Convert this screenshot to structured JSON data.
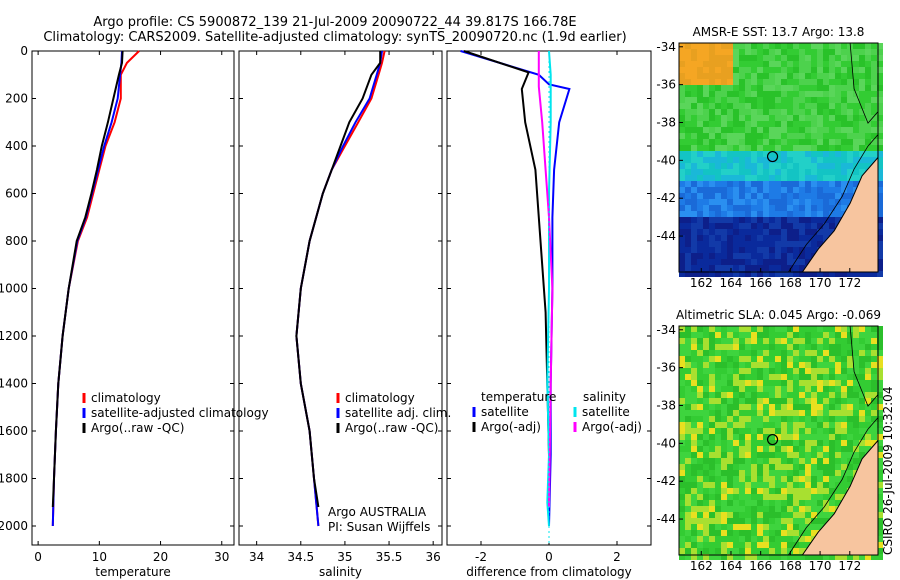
{
  "header": {
    "line1": "Argo profile: CS 5900872_139 21-Jul-2009 20090722_44 39.817S 166.78E",
    "line2": "Climatology: CARS2009. Satellite-adjusted climatology: synTS_20090720.nc (1.9d earlier)"
  },
  "side_stamp": "CSIRO 26-Jul-2009 10:32:04",
  "colors": {
    "climatology": "#ff0000",
    "satellite": "#0000ff",
    "argo": "#000000",
    "sat_sal": "#00e5ee",
    "argo_sal": "#ff00ff",
    "land": "#f7c59f"
  },
  "chart_data": [
    {
      "type": "line",
      "xlabel": "temperature",
      "ylabel": "",
      "xlim": [
        -1,
        32
      ],
      "ylim": [
        2080,
        0
      ],
      "xticks": [
        0,
        10,
        20,
        30
      ],
      "yticks": [
        0,
        200,
        400,
        600,
        800,
        1000,
        1200,
        1400,
        1600,
        1800,
        2000
      ],
      "series": [
        {
          "name": "climatology",
          "color": "#ff0000",
          "x": [
            16.5,
            14.5,
            13.5,
            13.5,
            12.5,
            11.0,
            10.0,
            9.0,
            8.0,
            6.5,
            5.0,
            4.0,
            3.3,
            2.9,
            2.6,
            2.4
          ],
          "y": [
            0,
            50,
            100,
            200,
            300,
            400,
            500,
            600,
            700,
            800,
            1000,
            1200,
            1400,
            1600,
            1800,
            2000
          ]
        },
        {
          "name": "satellite-adjusted climatology",
          "color": "#0000ff",
          "x": [
            13.7,
            13.6,
            13.4,
            13.0,
            12.0,
            10.8,
            9.8,
            8.8,
            7.8,
            6.4,
            5.0,
            4.0,
            3.3,
            2.9,
            2.6,
            2.4
          ],
          "y": [
            0,
            50,
            100,
            200,
            300,
            400,
            500,
            600,
            700,
            800,
            1000,
            1200,
            1400,
            1600,
            1800,
            2000
          ]
        },
        {
          "name": "Argo(..raw -QC)",
          "color": "#000000",
          "x": [
            13.8,
            13.7,
            13.2,
            12.3,
            11.4,
            10.4,
            9.6,
            8.7,
            7.7,
            6.3,
            5.0,
            4.0,
            3.3,
            2.9,
            2.6,
            2.4
          ],
          "y": [
            0,
            50,
            100,
            200,
            300,
            400,
            500,
            600,
            700,
            800,
            1000,
            1200,
            1400,
            1600,
            1800,
            1920
          ]
        }
      ],
      "legend": [
        "climatology",
        "satellite-adjusted climatology",
        "Argo(..raw -QC)"
      ]
    },
    {
      "type": "line",
      "xlabel": "salinity",
      "ylabel": "",
      "xlim": [
        33.8,
        36.1
      ],
      "ylim": [
        2080,
        0
      ],
      "xticks": [
        34,
        34.5,
        35,
        35.5,
        36
      ],
      "series": [
        {
          "name": "climatology",
          "color": "#ff0000",
          "x": [
            35.45,
            35.42,
            35.38,
            35.3,
            35.15,
            35.0,
            34.85,
            34.75,
            34.6,
            34.5,
            34.45,
            34.5,
            34.6,
            34.65,
            34.7
          ],
          "y": [
            0,
            50,
            100,
            200,
            300,
            400,
            500,
            600,
            800,
            1000,
            1200,
            1400,
            1600,
            1800,
            2000
          ]
        },
        {
          "name": "satellite adj. clim.",
          "color": "#0000ff",
          "x": [
            35.42,
            35.4,
            35.36,
            35.28,
            35.12,
            34.98,
            34.85,
            34.75,
            34.6,
            34.5,
            34.45,
            34.5,
            34.6,
            34.65,
            34.7
          ],
          "y": [
            0,
            50,
            100,
            200,
            300,
            400,
            500,
            600,
            800,
            1000,
            1200,
            1400,
            1600,
            1800,
            2000
          ]
        },
        {
          "name": "Argo(..raw -QC)",
          "color": "#000000",
          "x": [
            35.4,
            35.4,
            35.3,
            35.2,
            35.05,
            34.95,
            34.85,
            34.75,
            34.6,
            34.5,
            34.45,
            34.5,
            34.6,
            34.65,
            34.7
          ],
          "y": [
            0,
            50,
            100,
            200,
            300,
            400,
            500,
            600,
            800,
            1000,
            1200,
            1400,
            1600,
            1800,
            1920
          ]
        }
      ],
      "legend": [
        "climatology",
        "satellite adj. clim.",
        "Argo(..raw -QC)"
      ],
      "annotation": [
        "Argo AUSTRALIA",
        "PI: Susan Wijffels"
      ]
    },
    {
      "type": "line",
      "xlabel": "difference from climatology",
      "ylabel": "",
      "xlim": [
        -3,
        3
      ],
      "ylim": [
        2080,
        0
      ],
      "xticks": [
        -2,
        0,
        2
      ],
      "series": [
        {
          "name": "satellite",
          "color": "#0000ff",
          "x": [
            -2.6,
            -0.3,
            0.0,
            0.6,
            0.3,
            0.15,
            0.1,
            0.1,
            0.05,
            0.05,
            0.0
          ],
          "y": [
            0,
            100,
            140,
            160,
            300,
            500,
            700,
            1000,
            1400,
            1700,
            2000
          ]
        },
        {
          "name": "Argo(-adj)",
          "color": "#000000",
          "x": [
            -2.5,
            -0.6,
            -0.8,
            -0.7,
            -0.4,
            -0.3,
            -0.2,
            -0.1,
            -0.05,
            0.0,
            0.0
          ],
          "y": [
            0,
            90,
            160,
            300,
            500,
            700,
            900,
            1100,
            1400,
            1700,
            1920
          ]
        },
        {
          "name": "satellite",
          "color": "#00e5ee",
          "x": [
            0.0,
            0.05,
            0.05,
            0.0,
            0.0,
            -0.05,
            0.0,
            -0.05,
            0.0
          ],
          "y": [
            0,
            100,
            300,
            600,
            1000,
            1400,
            1700,
            1900,
            2000
          ]
        },
        {
          "name": "Argo(-adj)",
          "color": "#ff00ff",
          "x": [
            -0.3,
            -0.3,
            -0.2,
            -0.1,
            0.0,
            0.1,
            0.05,
            0.0
          ],
          "y": [
            0,
            150,
            300,
            500,
            700,
            1000,
            1400,
            1920
          ]
        }
      ],
      "legend_titles": [
        "temperature",
        "salinity"
      ],
      "legend": [
        "satellite",
        "Argo(-adj)",
        "satellite",
        "Argo(-adj)"
      ]
    },
    {
      "type": "heatmap",
      "title": "AMSR-E SST: 13.7 Argo: 13.8",
      "xticks": [
        162,
        164,
        166,
        168,
        170,
        172
      ],
      "yticks": [
        -34,
        -36,
        -38,
        -40,
        -42,
        -44
      ],
      "marker_lonlat": [
        166.8,
        -39.8
      ]
    },
    {
      "type": "heatmap",
      "title": "Altimetric SLA: 0.045 Argo: -0.069",
      "xticks": [
        162,
        164,
        166,
        168,
        170,
        172
      ],
      "yticks": [
        -34,
        -36,
        -38,
        -40,
        -42,
        -44
      ],
      "marker_lonlat": [
        166.8,
        -39.8
      ]
    }
  ]
}
